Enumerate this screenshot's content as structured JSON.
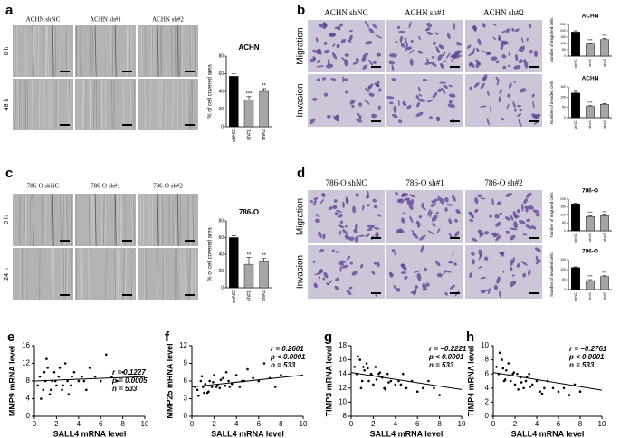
{
  "panels": [
    {
      "label": "a",
      "columns": [
        "ACHN shNC",
        "ACHN sh#1",
        "ACHN sh#2"
      ],
      "rows": [
        "0 h",
        "48 h"
      ]
    },
    {
      "label": "b",
      "columns": [
        "ACHN shNC",
        "ACHN sh#1",
        "ACHN sh#2"
      ],
      "rows": [
        "Migration",
        "Invasion"
      ]
    },
    {
      "label": "c",
      "columns": [
        "786-O shNC",
        "786-O sh#1",
        "786-O sh#2"
      ],
      "rows": [
        "0 h",
        "24 h"
      ]
    },
    {
      "label": "d",
      "columns": [
        "786-O shNC",
        "786-O sh#1",
        "786-O sh#2"
      ],
      "rows": [
        "Migration",
        "Invasion"
      ]
    }
  ],
  "chart_data": [
    {
      "type": "bar",
      "title": "ACHN",
      "ylabel": "% of cell covered area",
      "categories": [
        "shNC",
        "sh#1",
        "sh#2"
      ],
      "values": [
        57,
        30,
        40
      ],
      "errors": [
        3,
        4,
        3
      ],
      "stars": [
        "***",
        "**"
      ],
      "colors": [
        "#000000",
        "#a6a6a6",
        "#a6a6a6"
      ],
      "ylim": [
        0,
        80
      ],
      "yticks": [
        0,
        20,
        40,
        60,
        80
      ]
    },
    {
      "type": "bar",
      "title": "ACHN",
      "ylabel": "Number of migrated cells",
      "categories": [
        "shNC",
        "sh#1",
        "sh#2"
      ],
      "values": [
        190,
        95,
        130
      ],
      "errors": [
        10,
        5,
        8
      ],
      "stars": [
        "***",
        "***"
      ],
      "colors": [
        "#000000",
        "#a6a6a6",
        "#a6a6a6"
      ],
      "ylim": [
        0,
        250
      ],
      "yticks": [
        0,
        50,
        100,
        150,
        200,
        250
      ]
    },
    {
      "type": "bar",
      "title": "ACHN",
      "ylabel": "Number of invaded cells",
      "categories": [
        "shNC",
        "sh#1",
        "sh#2"
      ],
      "values": [
        120,
        55,
        65
      ],
      "errors": [
        8,
        4,
        4
      ],
      "stars": [
        "***",
        "***"
      ],
      "colors": [
        "#000000",
        "#a6a6a6",
        "#a6a6a6"
      ],
      "ylim": [
        0,
        150
      ],
      "yticks": [
        0,
        50,
        100,
        150
      ]
    },
    {
      "type": "bar",
      "title": "786-O",
      "ylabel": "% of cell covered area",
      "categories": [
        "shNC",
        "sh#1",
        "sh#2"
      ],
      "values": [
        60,
        28,
        32
      ],
      "errors": [
        2,
        8,
        3
      ],
      "stars": [
        "**",
        "**"
      ],
      "colors": [
        "#000000",
        "#a6a6a6",
        "#a6a6a6"
      ],
      "ylim": [
        0,
        80
      ],
      "yticks": [
        0,
        20,
        40,
        60,
        80
      ]
    },
    {
      "type": "bar",
      "title": "786-O",
      "ylabel": "Number of migrated cells",
      "categories": [
        "shNC",
        "sh#1",
        "sh#2"
      ],
      "values": [
        170,
        90,
        95
      ],
      "errors": [
        5,
        4,
        4
      ],
      "stars": [
        "***",
        "***"
      ],
      "colors": [
        "#000000",
        "#a6a6a6",
        "#a6a6a6"
      ],
      "ylim": [
        0,
        200
      ],
      "yticks": [
        0,
        50,
        100,
        150,
        200
      ]
    },
    {
      "type": "bar",
      "title": "786-O",
      "ylabel": "Number of invaded cells",
      "categories": [
        "shNC",
        "sh#1",
        "sh#2"
      ],
      "values": [
        110,
        45,
        65
      ],
      "errors": [
        4,
        5,
        4
      ],
      "stars": [
        "***",
        "***"
      ],
      "colors": [
        "#000000",
        "#a6a6a6",
        "#a6a6a6"
      ],
      "ylim": [
        0,
        150
      ],
      "yticks": [
        0,
        50,
        100,
        150
      ]
    },
    {
      "type": "scatter",
      "panel": "e",
      "xlabel": "SALL4 mRNA level",
      "ylabel": "MMP9 mRNA level",
      "annotations": [
        "r = 0.1227",
        "p = 0.0005",
        "n = 533"
      ],
      "color": "#000000",
      "x": [
        0.3,
        0.5,
        0.8,
        1.0,
        1.2,
        1.4,
        1.6,
        1.8,
        2.0,
        2.2,
        2.5,
        2.8,
        3.0,
        3.3,
        3.6,
        4.0,
        4.3,
        4.7,
        5.0,
        5.5,
        6.0,
        6.5,
        7.0,
        7.5,
        8.0,
        0.6,
        1.1,
        1.9,
        2.6,
        3.4,
        0.9,
        1.5,
        2.3,
        3.1,
        4.5
      ],
      "values": [
        7,
        9,
        6,
        8,
        11,
        5,
        8,
        10,
        7,
        9,
        6,
        12,
        8,
        7,
        10,
        8,
        9,
        6,
        11,
        9,
        8,
        14,
        9,
        8,
        10,
        4,
        13,
        8,
        7,
        9,
        10,
        6,
        11,
        5,
        8
      ],
      "fit": {
        "x": [
          0,
          10
        ],
        "y": [
          8.0,
          9.0
        ]
      },
      "xlim": [
        0,
        10
      ],
      "xticks": [
        0,
        2,
        4,
        6,
        8,
        10
      ],
      "ylim": [
        0,
        16
      ],
      "yticks": [
        0,
        4,
        8,
        12,
        16
      ]
    },
    {
      "type": "scatter",
      "panel": "f",
      "xlabel": "SALL4 mRNA level",
      "ylabel": "MMP25 mRNA level",
      "annotations": [
        "r = 0.2601",
        "p < 0.0001",
        "n = 533"
      ],
      "color": "#000000",
      "x": [
        0.3,
        0.5,
        0.8,
        1.0,
        1.2,
        1.4,
        1.6,
        1.8,
        2.0,
        2.2,
        2.5,
        2.8,
        3.0,
        3.3,
        3.6,
        4.0,
        4.3,
        4.7,
        5.0,
        5.5,
        6.0,
        6.5,
        7.0,
        7.5,
        8.0,
        0.6,
        1.1,
        1.9,
        2.6,
        3.4,
        0.9,
        1.5,
        2.3,
        3.1,
        4.5
      ],
      "values": [
        5,
        4.5,
        6,
        5,
        5.5,
        4,
        6,
        5,
        7,
        5,
        4.8,
        6.5,
        5.2,
        6,
        5.5,
        7,
        5,
        6,
        8,
        6.5,
        6,
        9,
        6.5,
        5,
        7,
        3.5,
        4,
        5.8,
        6.2,
        5,
        6.8,
        4.2,
        5.3,
        7.5,
        6
      ],
      "fit": {
        "x": [
          0,
          10
        ],
        "y": [
          5.0,
          7.0
        ]
      },
      "xlim": [
        0,
        10
      ],
      "xticks": [
        0,
        2,
        4,
        6,
        8,
        10
      ],
      "ylim": [
        0,
        12
      ],
      "yticks": [
        0,
        3,
        6,
        9,
        12
      ]
    },
    {
      "type": "scatter",
      "panel": "g",
      "xlabel": "SALL4 mRNA level",
      "ylabel": "TIMP3 mRNA level",
      "annotations": [
        "r = −0.2221",
        "p < 0.0001",
        "n = 533"
      ],
      "color": "#000000",
      "x": [
        0.3,
        0.5,
        0.8,
        1.0,
        1.2,
        1.4,
        1.6,
        1.8,
        2.0,
        2.2,
        2.5,
        2.8,
        3.0,
        3.3,
        3.6,
        4.0,
        4.3,
        4.7,
        5.0,
        5.5,
        6.0,
        6.5,
        7.0,
        7.5,
        8.0,
        0.6,
        1.1,
        1.9,
        2.6,
        3.4,
        0.9,
        1.5,
        2.3,
        3.1,
        4.5
      ],
      "values": [
        15,
        14,
        16,
        13,
        14.5,
        15.5,
        13,
        14,
        12.5,
        15,
        14,
        13.5,
        12,
        14,
        13,
        12.5,
        13,
        14,
        12,
        13,
        11.5,
        12,
        13,
        12,
        11,
        16.5,
        15,
        13.8,
        14.2,
        12.8,
        12,
        14.8,
        13.2,
        11.8,
        12.5
      ],
      "fit": {
        "x": [
          0,
          10
        ],
        "y": [
          14.2,
          11.8
        ]
      },
      "xlim": [
        0,
        10
      ],
      "xticks": [
        0,
        2,
        4,
        6,
        8,
        10
      ],
      "ylim": [
        8,
        18
      ],
      "yticks": [
        8,
        10,
        12,
        14,
        16,
        18
      ]
    },
    {
      "type": "scatter",
      "panel": "h",
      "xlabel": "SALL4 mRNA level",
      "ylabel": "TIMP4 mRNA level",
      "annotations": [
        "r = −0.2761",
        "p < 0.0001",
        "n = 533"
      ],
      "color": "#000000",
      "x": [
        0.3,
        0.5,
        0.8,
        1.0,
        1.2,
        1.4,
        1.6,
        1.8,
        2.0,
        2.2,
        2.5,
        2.8,
        3.0,
        3.3,
        3.6,
        4.0,
        4.3,
        4.7,
        5.0,
        5.5,
        6.0,
        6.5,
        7.0,
        7.5,
        8.0,
        0.6,
        1.1,
        1.9,
        2.6,
        3.4,
        0.9,
        1.5,
        2.3,
        3.1,
        4.5
      ],
      "values": [
        7,
        6,
        8,
        5,
        6.5,
        7.5,
        5,
        6,
        4.5,
        6,
        5.5,
        4,
        5,
        6,
        4.5,
        5,
        3.5,
        4,
        5,
        4,
        3.5,
        4,
        3,
        4.5,
        3.5,
        9,
        5.2,
        6.2,
        4.8,
        4.2,
        6.8,
        5.8,
        3.8,
        5.6,
        3.2
      ],
      "fit": {
        "x": [
          0,
          10
        ],
        "y": [
          6.2,
          3.7
        ]
      },
      "xlim": [
        0,
        10
      ],
      "xticks": [
        0,
        2,
        4,
        6,
        8,
        10
      ],
      "ylim": [
        0,
        10
      ],
      "yticks": [
        0,
        2,
        4,
        6,
        8,
        10
      ]
    }
  ]
}
